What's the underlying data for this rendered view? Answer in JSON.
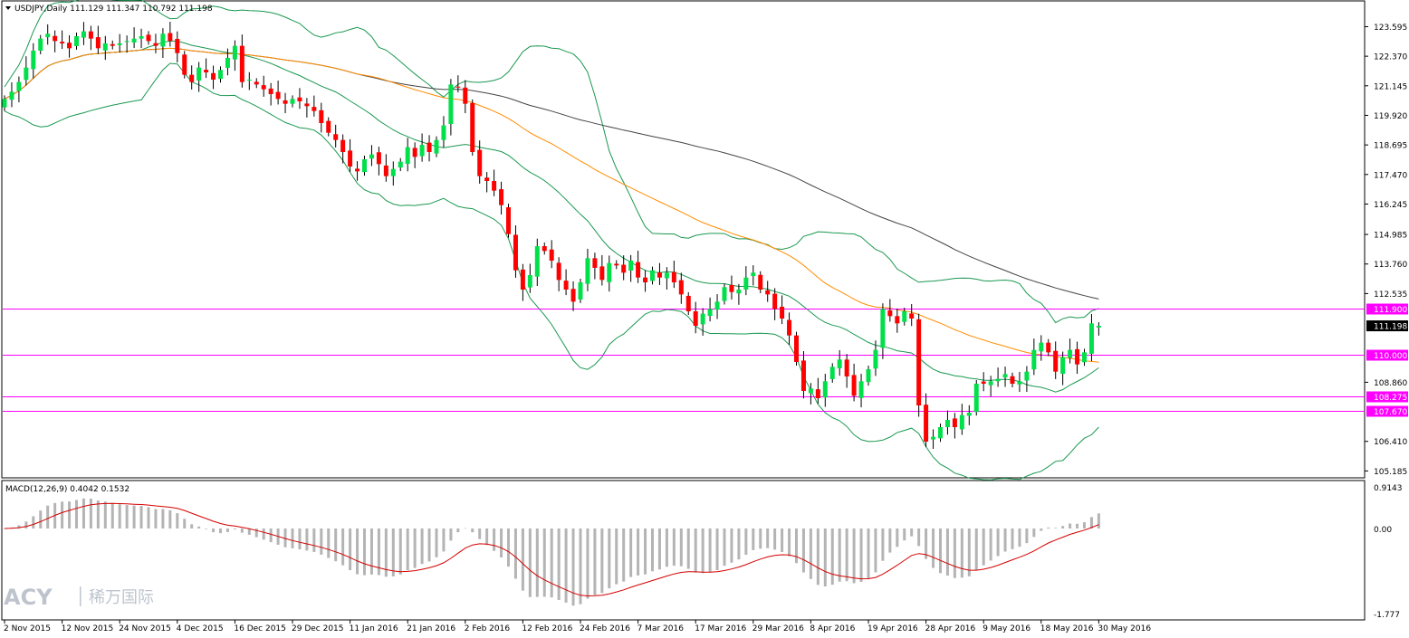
{
  "chart_data": {
    "type": "candlestick",
    "symbol_header": "USDJPY,Daily  111.129 111.347 110.792 111.198",
    "ohlc": {
      "open": 111.129,
      "high": 111.347,
      "low": 110.792,
      "close": 111.198
    },
    "main_ylim": [
      104.9,
      124.4
    ],
    "price_ticks": [
      "123.595",
      "122.370",
      "121.145",
      "119.920",
      "118.695",
      "117.470",
      "116.245",
      "114.985",
      "113.760",
      "112.535",
      "110.000",
      "108.860",
      "106.410",
      "105.185"
    ],
    "current_price_label": "111.198",
    "current_price": 111.198,
    "horizontal_lines": [
      {
        "value": 111.9,
        "label": "111.900"
      },
      {
        "value": 110.0,
        "label": "110.000"
      },
      {
        "value": 108.275,
        "label": "108.275"
      },
      {
        "value": 107.67,
        "label": "107.670"
      }
    ],
    "date_ticks": [
      {
        "label": "2 Nov 2015",
        "bar": 0
      },
      {
        "label": "12 Nov 2015",
        "bar": 8
      },
      {
        "label": "24 Nov 2015",
        "bar": 16
      },
      {
        "label": "4 Dec 2015",
        "bar": 24
      },
      {
        "label": "16 Dec 2015",
        "bar": 32
      },
      {
        "label": "29 Dec 2015",
        "bar": 40
      },
      {
        "label": "11 Jan 2016",
        "bar": 48
      },
      {
        "label": "21 Jan 2016",
        "bar": 56
      },
      {
        "label": "2 Feb 2016",
        "bar": 64
      },
      {
        "label": "12 Feb 2016",
        "bar": 72
      },
      {
        "label": "24 Feb 2016",
        "bar": 80
      },
      {
        "label": "7 Mar 2016",
        "bar": 88
      },
      {
        "label": "17 Mar 2016",
        "bar": 96
      },
      {
        "label": "29 Mar 2016",
        "bar": 104
      },
      {
        "label": "8 Apr 2016",
        "bar": 112
      },
      {
        "label": "19 Apr 2016",
        "bar": 120
      },
      {
        "label": "28 Apr 2016",
        "bar": 128
      },
      {
        "label": "9 May 2016",
        "bar": 136
      },
      {
        "label": "18 May 2016",
        "bar": 144
      },
      {
        "label": "30 May 2016",
        "bar": 152
      }
    ],
    "closes": [
      120.6,
      120.9,
      121.3,
      121.9,
      122.6,
      123.1,
      123.3,
      123.0,
      122.9,
      122.7,
      123.2,
      123.4,
      123.1,
      122.7,
      122.9,
      122.8,
      122.9,
      123.0,
      123.1,
      123.2,
      123.0,
      122.8,
      123.3,
      123.0,
      122.5,
      121.6,
      121.3,
      121.9,
      121.7,
      121.4,
      121.8,
      122.3,
      122.8,
      121.3,
      121.4,
      121.2,
      121.0,
      120.8,
      120.6,
      120.4,
      120.6,
      120.5,
      120.3,
      120.1,
      119.6,
      119.2,
      118.9,
      118.4,
      117.8,
      117.6,
      118.1,
      118.3,
      117.9,
      117.4,
      117.7,
      118.0,
      118.6,
      118.2,
      118.7,
      118.4,
      118.9,
      119.5,
      121.2,
      121.1,
      120.4,
      118.4,
      117.4,
      117.2,
      116.8,
      116.2,
      115.0,
      113.5,
      112.7,
      113.3,
      114.5,
      114.3,
      113.9,
      113.1,
      112.7,
      112.2,
      113.0,
      114.0,
      113.6,
      113.1,
      113.8,
      113.7,
      113.4,
      113.9,
      113.2,
      113.0,
      113.5,
      113.2,
      113.4,
      113.0,
      112.5,
      111.8,
      111.2,
      111.7,
      111.9,
      112.2,
      112.8,
      112.6,
      112.7,
      113.2,
      113.4,
      112.7,
      112.5,
      111.9,
      111.5,
      110.8,
      109.7,
      108.5,
      108.6,
      108.2,
      108.9,
      109.5,
      109.8,
      109.1,
      108.3,
      108.9,
      109.4,
      110.2,
      111.9,
      111.6,
      111.3,
      111.8,
      111.5,
      107.9,
      106.4,
      106.6,
      107.0,
      107.3,
      107.0,
      107.5,
      107.6,
      108.8,
      108.8,
      108.9,
      109.0,
      109.2,
      108.8,
      108.9,
      109.3,
      110.2,
      110.5,
      110.1,
      109.3,
      109.9,
      110.2,
      109.6,
      110.1,
      111.3,
      111.198
    ]
  }
}
